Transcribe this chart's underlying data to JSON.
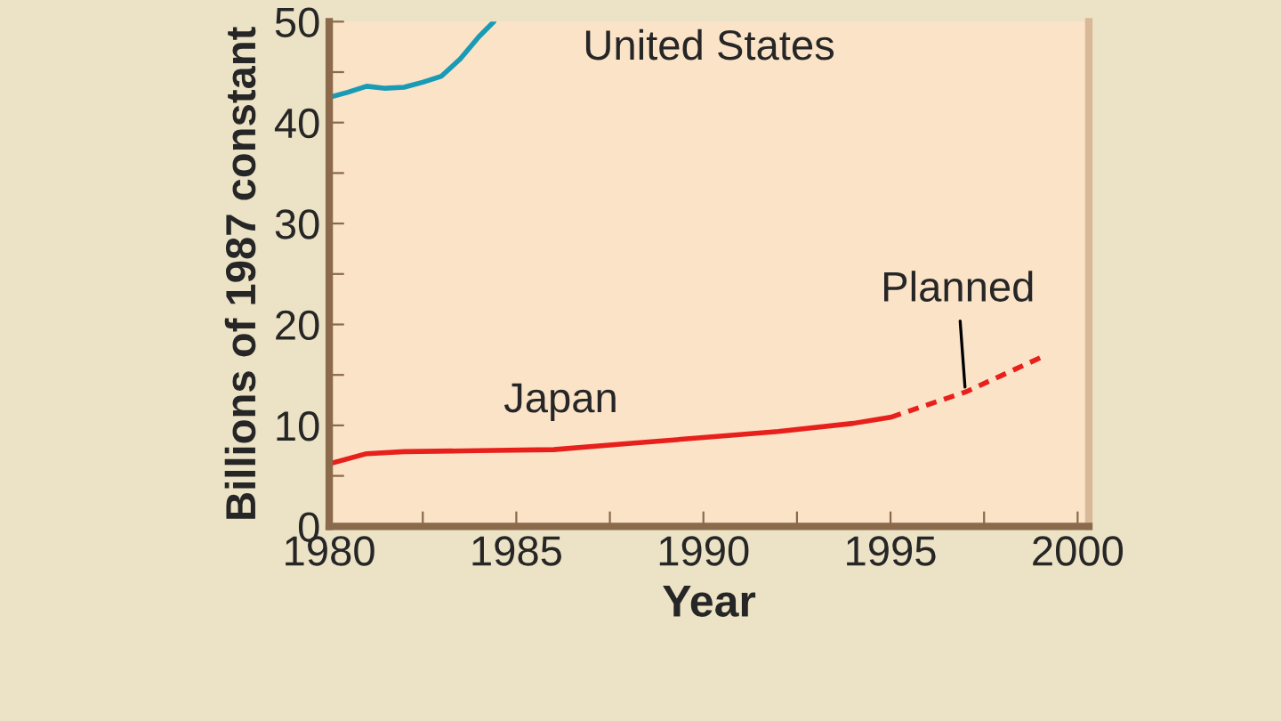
{
  "chart_data": {
    "type": "line",
    "xlabel": "Year",
    "ylabel": "Billions of 1987 constant",
    "series": [
      {
        "name": "United States",
        "color": "#1a9bb5",
        "line_style": "solid",
        "x": [
          1980,
          1980.5,
          1981,
          1981.5,
          1982,
          1982.5,
          1983,
          1983.5,
          1984,
          1984.4
        ],
        "values": [
          42.5,
          43,
          43.6,
          43.4,
          43.5,
          44,
          44.6,
          46.3,
          48.5,
          50
        ]
      },
      {
        "name": "Japan",
        "color": "#e8201c",
        "line_style": "solid",
        "x": [
          1980,
          1981,
          1982,
          1984,
          1986,
          1988,
          1990,
          1992,
          1994,
          1995
        ],
        "values": [
          6.2,
          7.2,
          7.4,
          7.5,
          7.6,
          8.2,
          8.8,
          9.4,
          10.2,
          10.8
        ]
      },
      {
        "color": "#e8201c",
        "line_style": "dashed",
        "x": [
          1995,
          1997,
          1999
        ],
        "values": [
          10.8,
          13.3,
          16.7
        ]
      }
    ],
    "annotations": [
      {
        "text": "Planned",
        "x": 1997,
        "y": 13.3
      }
    ],
    "xlim": [
      1980,
      2000.3
    ],
    "ylim": [
      0,
      50
    ],
    "xticks": [
      1980,
      {
        "value": 1982.5,
        "label": null
      },
      1985,
      {
        "value": 1987.5,
        "label": null
      },
      1990,
      {
        "value": 1992.5,
        "label": null
      },
      1995,
      {
        "value": 1997.5,
        "label": null
      },
      2000
    ],
    "yticks": [
      0,
      {
        "value": 5,
        "label": null
      },
      10,
      {
        "value": 15,
        "label": null
      },
      20,
      {
        "value": 25,
        "label": null
      },
      30,
      {
        "value": 35,
        "label": null
      },
      40,
      {
        "value": 45,
        "label": null
      },
      50
    ],
    "grid": false,
    "legend": false,
    "marker": "none"
  }
}
